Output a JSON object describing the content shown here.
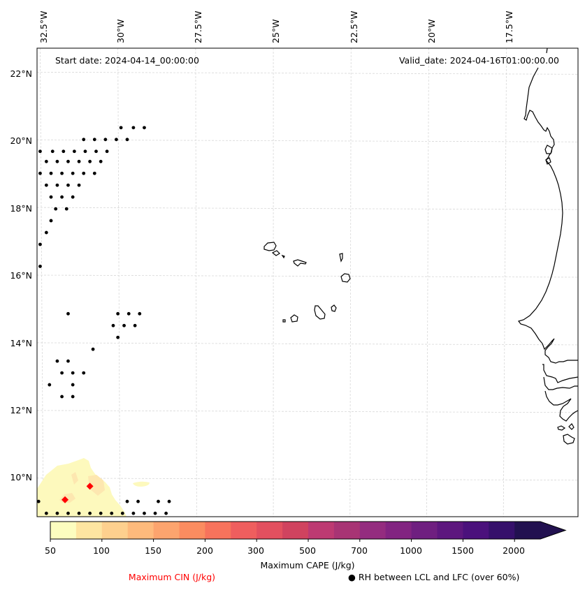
{
  "map": {
    "start_date": "Start date: 2024-04-14_00:00:00",
    "valid_date": "Valid_date: 2024-04-16T01:00:00.00",
    "lon_ticks": [
      "32.5°W",
      "30°W",
      "27.5°W",
      "25°W",
      "22.5°W",
      "20°W",
      "17.5°W"
    ],
    "lat_ticks": [
      "22°N",
      "20°N",
      "18°N",
      "16°N",
      "14°N",
      "12°N",
      "10°N"
    ],
    "extent": {
      "lon_min": -32.6,
      "lon_max": -15.2,
      "lat_min": 8.9,
      "lat_max": 22.75
    },
    "gridlines": true
  },
  "colorbar": {
    "label": "Maximum CAPE (J/kg)",
    "tick_labels": [
      "50",
      "100",
      "150",
      "200",
      "300",
      "500",
      "700",
      "1000",
      "1500",
      "2000"
    ],
    "levels": [
      50,
      75,
      100,
      125,
      150,
      175,
      200,
      250,
      300,
      400,
      500,
      600,
      700,
      850,
      1000,
      1250,
      1500,
      1750,
      2000
    ],
    "colors": [
      "#fcfdbf",
      "#fee5a1",
      "#fed08e",
      "#feba7c",
      "#fca46e",
      "#fb8c60",
      "#f7735c",
      "#ef5e5e",
      "#e2505f",
      "#d0435f",
      "#bd3a72",
      "#a83474",
      "#942c7f",
      "#822481",
      "#6f1f80",
      "#5d177e",
      "#4b117c",
      "#36106b",
      "#221150"
    ],
    "extend": "max"
  },
  "legend": {
    "cin_label": "Maximum CIN (J/kg)",
    "cin_color": "#ff0000",
    "rh_label": "● RH between LCL and LFC (over 60%)"
  },
  "chart_data": {
    "type": "map",
    "title": "",
    "variables": {
      "shading": "Maximum CAPE (J/kg)",
      "markers_red_diamond": "Maximum CIN (J/kg)",
      "markers_black_dot": "RH between LCL and LFC (over 60%)"
    },
    "cape_regions": [
      {
        "level": "50-75",
        "approx_area": "SW corner, ~32.5W–30.7W, 8.9N–10.5N"
      },
      {
        "level": "75-100",
        "approx_area": "small patches near 31.7W 9.9N and 30.9W 9.8N"
      }
    ],
    "cin_markers": [
      {
        "lon": -31.7,
        "lat": 9.4
      },
      {
        "lon": -30.9,
        "lat": 9.8
      }
    ],
    "rh_dot_rows": [
      {
        "lat": 20.4,
        "lons": [
          -29.9,
          -29.5,
          -29.15
        ]
      },
      {
        "lat": 20.05,
        "lons": [
          -31.1,
          -30.75,
          -30.4,
          -30.05,
          -29.7
        ]
      },
      {
        "lat": 19.7,
        "lons": [
          -32.5,
          -32.1,
          -31.75,
          -31.4,
          -31.05,
          -30.7,
          -30.35
        ]
      },
      {
        "lat": 19.4,
        "lons": [
          -32.3,
          -31.95,
          -31.6,
          -31.25,
          -30.9,
          -30.55
        ]
      },
      {
        "lat": 19.05,
        "lons": [
          -32.5,
          -32.15,
          -31.8,
          -31.45,
          -31.1,
          -30.75
        ]
      },
      {
        "lat": 18.7,
        "lons": [
          -32.3,
          -31.95,
          -31.6,
          -31.25
        ]
      },
      {
        "lat": 18.35,
        "lons": [
          -32.15,
          -31.8,
          -31.45
        ]
      },
      {
        "lat": 18.0,
        "lons": [
          -32.0,
          -31.65
        ]
      },
      {
        "lat": 17.65,
        "lons": [
          -32.15
        ]
      },
      {
        "lat": 17.3,
        "lons": [
          -32.3
        ]
      },
      {
        "lat": 16.95,
        "lons": [
          -32.5
        ]
      },
      {
        "lat": 16.3,
        "lons": [
          -32.5
        ]
      },
      {
        "lat": 14.9,
        "lons": [
          -31.6,
          -30.0,
          -29.65,
          -29.3
        ]
      },
      {
        "lat": 14.55,
        "lons": [
          -30.15,
          -29.8,
          -29.45
        ]
      },
      {
        "lat": 14.2,
        "lons": [
          -30.0
        ]
      },
      {
        "lat": 13.85,
        "lons": [
          -30.8
        ]
      },
      {
        "lat": 13.5,
        "lons": [
          -31.95,
          -31.6
        ]
      },
      {
        "lat": 13.15,
        "lons": [
          -31.8,
          -31.45,
          -31.1
        ]
      },
      {
        "lat": 12.8,
        "lons": [
          -32.2,
          -31.45
        ]
      },
      {
        "lat": 12.45,
        "lons": [
          -31.8,
          -31.45
        ]
      },
      {
        "lat": 9.35,
        "lons": [
          -32.55,
          -29.7,
          -29.35,
          -28.7,
          -28.35
        ]
      },
      {
        "lat": 9.0,
        "lons": [
          -32.3,
          -31.95,
          -31.6,
          -31.25,
          -30.9,
          -30.55,
          -30.2,
          -29.85,
          -29.5,
          -29.15,
          -28.8,
          -28.45
        ]
      }
    ]
  }
}
